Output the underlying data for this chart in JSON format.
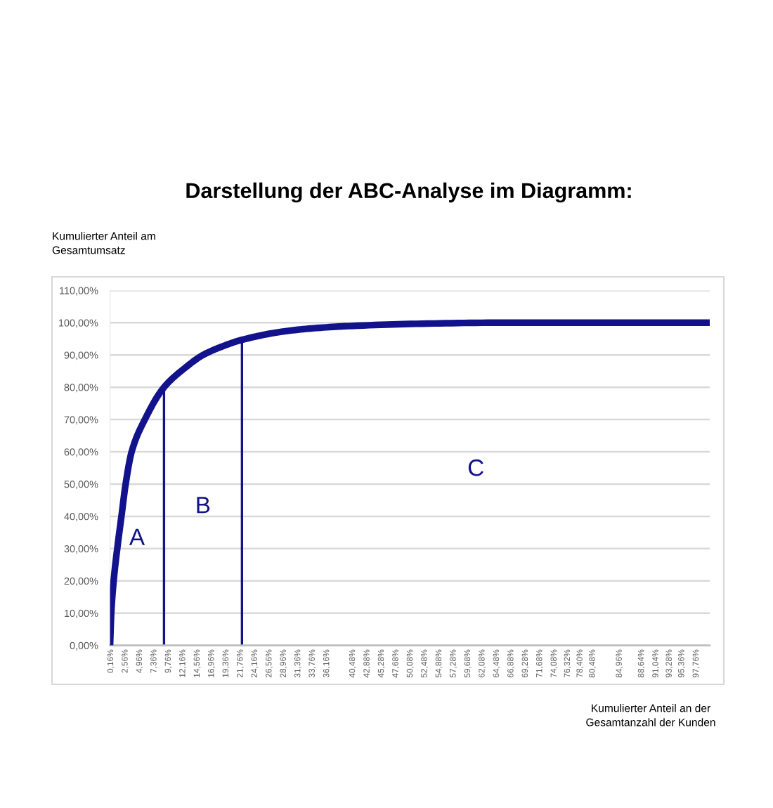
{
  "chart_data": {
    "type": "line",
    "title": "Darstellung der ABC-Analyse im Diagramm:",
    "ylabel": "Kumulierter Anteil am\nGesamtumsatz",
    "xlabel": "Kumulierter Anteil an der\nGesamtanzahl der Kunden",
    "series": [
      {
        "color": "#12128c",
        "x": [
          0,
          0.2,
          0.6,
          1.2,
          1.9,
          2.6,
          3.6,
          5.8,
          9,
          12.5,
          15.5,
          18.5,
          22,
          28.6,
          34,
          40.3,
          52,
          64,
          100
        ],
        "values": [
          0,
          10,
          20,
          30,
          40,
          50,
          60,
          70,
          80,
          86,
          90,
          92.5,
          94.7,
          97.2,
          98.3,
          99,
          99.7,
          100,
          100
        ]
      }
    ],
    "xlim": [
      0,
      100
    ],
    "xticks": [
      {
        "value": 0.16,
        "label": "0,16%"
      },
      {
        "value": 2.56,
        "label": "2,56%"
      },
      {
        "value": 4.96,
        "label": "4,96%"
      },
      {
        "value": 7.36,
        "label": "7,36%"
      },
      {
        "value": 9.76,
        "label": "9,76%"
      },
      {
        "value": 12.16,
        "label": "12,16%"
      },
      {
        "value": 14.56,
        "label": "14,56%"
      },
      {
        "value": 16.96,
        "label": "16,96%"
      },
      {
        "value": 19.36,
        "label": "19,36%"
      },
      {
        "value": 21.76,
        "label": "21,76%"
      },
      {
        "value": 24.16,
        "label": "24,16%"
      },
      {
        "value": 26.56,
        "label": "26,56%"
      },
      {
        "value": 28.96,
        "label": "28,96%"
      },
      {
        "value": 31.36,
        "label": "31,36%"
      },
      {
        "value": 33.76,
        "label": "33,76%"
      },
      {
        "value": 36.16,
        "label": "36,16%"
      },
      {
        "value": 40.48,
        "label": "40,48%"
      },
      {
        "value": 42.88,
        "label": "42,88%"
      },
      {
        "value": 45.28,
        "label": "45,28%"
      },
      {
        "value": 47.68,
        "label": "47,68%"
      },
      {
        "value": 50.08,
        "label": "50,08%"
      },
      {
        "value": 52.48,
        "label": "52,48%"
      },
      {
        "value": 54.88,
        "label": "54,88%"
      },
      {
        "value": 57.28,
        "label": "57,28%"
      },
      {
        "value": 59.68,
        "label": "59,68%"
      },
      {
        "value": 62.08,
        "label": "62,08%"
      },
      {
        "value": 64.48,
        "label": "64,48%"
      },
      {
        "value": 66.88,
        "label": "66,88%"
      },
      {
        "value": 69.28,
        "label": "69,28%"
      },
      {
        "value": 71.68,
        "label": "71,68%"
      },
      {
        "value": 74.08,
        "label": "74,08%"
      },
      {
        "value": 76.32,
        "label": "76,32%"
      },
      {
        "value": 78.4,
        "label": "78,40%"
      },
      {
        "value": 80.48,
        "label": "80,48%"
      },
      {
        "value": 84.96,
        "label": "84,96%"
      },
      {
        "value": 88.64,
        "label": "88,64%"
      },
      {
        "value": 91.04,
        "label": "91,04%"
      },
      {
        "value": 93.28,
        "label": "93,28%"
      },
      {
        "value": 95.36,
        "label": "95,36%"
      },
      {
        "value": 97.76,
        "label": "97,76%"
      }
    ],
    "ylim": [
      0,
      110
    ],
    "yticks": [
      {
        "value": 0,
        "label": "0,00%"
      },
      {
        "value": 10,
        "label": "10,00%"
      },
      {
        "value": 20,
        "label": "20,00%"
      },
      {
        "value": 30,
        "label": "30,00%"
      },
      {
        "value": 40,
        "label": "40,00%"
      },
      {
        "value": 50,
        "label": "50,00%"
      },
      {
        "value": 60,
        "label": "60,00%"
      },
      {
        "value": 70,
        "label": "70,00%"
      },
      {
        "value": 80,
        "label": "80,00%"
      },
      {
        "value": 90,
        "label": "90,00%"
      },
      {
        "value": 100,
        "label": "100,00%"
      },
      {
        "value": 110,
        "label": "110,00%"
      }
    ],
    "grid": "y",
    "ref_lines": [
      {
        "axis": "x",
        "value": 9,
        "color": "#12128c"
      },
      {
        "axis": "x",
        "value": 22,
        "color": "#12128c"
      }
    ],
    "annotations": [
      "A",
      "B",
      "C"
    ]
  }
}
